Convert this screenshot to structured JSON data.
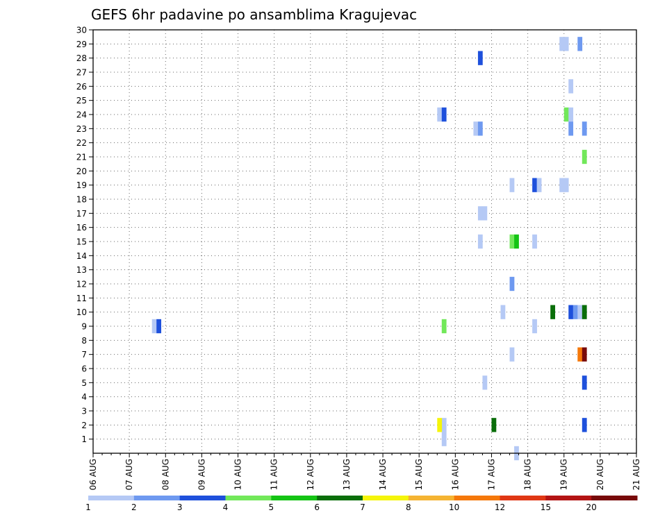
{
  "chart_data": {
    "type": "heatmap",
    "title": "GEFS 6hr padavine po ansamblima Kragujevac",
    "xlabel": "",
    "ylabel": "",
    "x_tick_labels": [
      "06 AUG",
      "07 AUG",
      "08 AUG",
      "09 AUG",
      "10 AUG",
      "11 AUG",
      "12 AUG",
      "13 AUG",
      "14 AUG",
      "15 AUG",
      "16 AUG",
      "17 AUG",
      "18 AUG",
      "19 AUG",
      "20 AUG",
      "21 AUG"
    ],
    "xlim": [
      0,
      60
    ],
    "y_ticks": [
      1,
      2,
      3,
      4,
      5,
      6,
      7,
      8,
      9,
      10,
      11,
      12,
      13,
      14,
      15,
      16,
      17,
      18,
      19,
      20,
      21,
      22,
      23,
      24,
      25,
      26,
      27,
      28,
      29,
      30
    ],
    "ylim": [
      0,
      30
    ],
    "grid": true,
    "colorbar": {
      "labels": [
        "1",
        "2",
        "3",
        "4",
        "5",
        "6",
        "7",
        "8",
        "10",
        "12",
        "15",
        "20"
      ],
      "colors": [
        "#b5c9f5",
        "#6e99f0",
        "#1e50dc",
        "#72e85a",
        "#14c414",
        "#0a6e0a",
        "#f5f50a",
        "#f5b432",
        "#f5780a",
        "#e03714",
        "#b41414",
        "#780a0a"
      ]
    },
    "cells": [
      {
        "t": 6.5,
        "m": 9,
        "level": 0
      },
      {
        "t": 7,
        "m": 9,
        "level": 2
      },
      {
        "t": 38.5,
        "m": 1,
        "level": 0
      },
      {
        "t": 38.5,
        "m": 2,
        "level": 0
      },
      {
        "t": 38,
        "m": 2,
        "level": 6
      },
      {
        "t": 38,
        "m": 24,
        "level": 0
      },
      {
        "t": 38.5,
        "m": 24,
        "level": 2
      },
      {
        "t": 38.5,
        "m": 9,
        "level": 3
      },
      {
        "t": 42,
        "m": 23,
        "level": 0
      },
      {
        "t": 42.5,
        "m": 23,
        "level": 1
      },
      {
        "t": 42.5,
        "m": 28,
        "level": 2
      },
      {
        "t": 42.5,
        "m": 17,
        "level": 0
      },
      {
        "t": 43,
        "m": 17,
        "level": 0
      },
      {
        "t": 42.5,
        "m": 15,
        "level": 0
      },
      {
        "t": 44,
        "m": 2,
        "level": 5
      },
      {
        "t": 43,
        "m": 5,
        "level": 0
      },
      {
        "t": 45,
        "m": 10,
        "level": 0
      },
      {
        "t": 46,
        "m": 19,
        "level": 0
      },
      {
        "t": 46,
        "m": 15,
        "level": 3
      },
      {
        "t": 46.5,
        "m": 15,
        "level": 4
      },
      {
        "t": 46,
        "m": 12,
        "level": 1
      },
      {
        "t": 46,
        "m": 7,
        "level": 0
      },
      {
        "t": 46.5,
        "m": 0,
        "level": 0
      },
      {
        "t": 48.5,
        "m": 19,
        "level": 2
      },
      {
        "t": 49,
        "m": 19,
        "level": 0
      },
      {
        "t": 48.5,
        "m": 15,
        "level": 0
      },
      {
        "t": 48.5,
        "m": 9,
        "level": 0
      },
      {
        "t": 50.5,
        "m": 10,
        "level": 5
      },
      {
        "t": 51.5,
        "m": 29,
        "level": 0
      },
      {
        "t": 52,
        "m": 29,
        "level": 0
      },
      {
        "t": 51.5,
        "m": 19,
        "level": 0
      },
      {
        "t": 52,
        "m": 19,
        "level": 0
      },
      {
        "t": 52,
        "m": 24,
        "level": 3
      },
      {
        "t": 52.5,
        "m": 24,
        "level": 0
      },
      {
        "t": 52.5,
        "m": 23,
        "level": 1
      },
      {
        "t": 52.5,
        "m": 26,
        "level": 0
      },
      {
        "t": 52.5,
        "m": 10,
        "level": 2
      },
      {
        "t": 53,
        "m": 10,
        "level": 1
      },
      {
        "t": 53.5,
        "m": 10,
        "level": 0
      },
      {
        "t": 54,
        "m": 10,
        "level": 5
      },
      {
        "t": 53.5,
        "m": 29,
        "level": 1
      },
      {
        "t": 54,
        "m": 23,
        "level": 1
      },
      {
        "t": 54,
        "m": 21,
        "level": 3
      },
      {
        "t": 53.5,
        "m": 7,
        "level": 8
      },
      {
        "t": 54,
        "m": 7,
        "level": 11
      },
      {
        "t": 54,
        "m": 5,
        "level": 2
      },
      {
        "t": 54,
        "m": 2,
        "level": 2
      }
    ]
  }
}
